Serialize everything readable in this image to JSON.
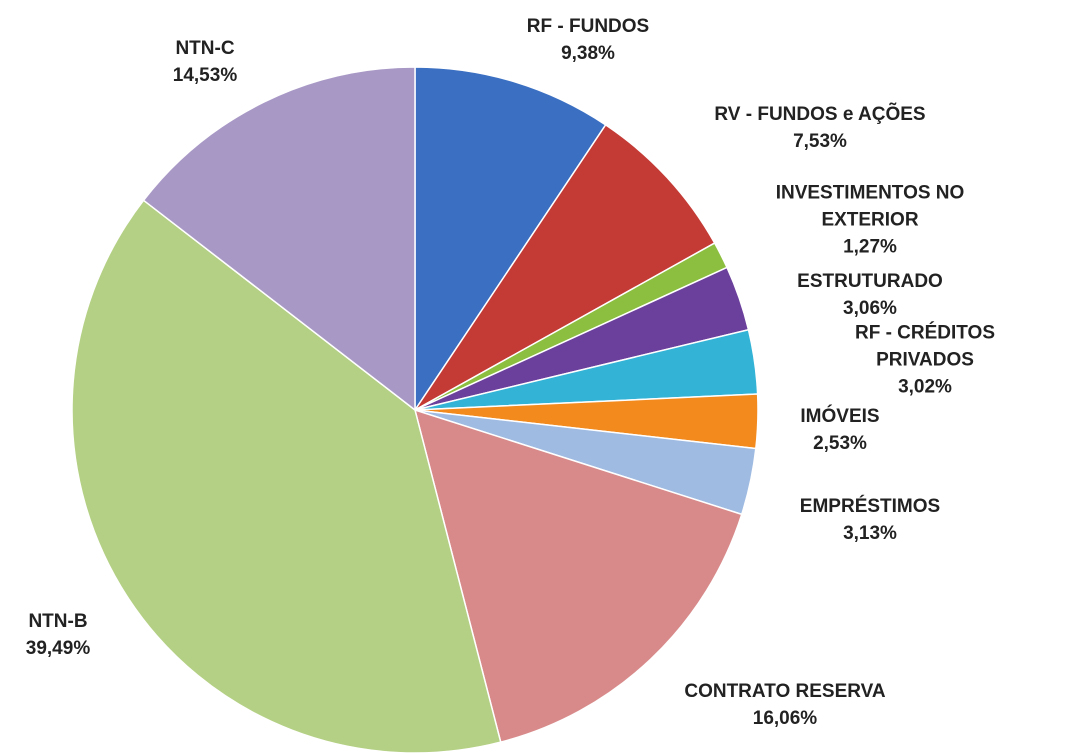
{
  "chart_data": {
    "type": "pie",
    "categories": [
      "RF - FUNDOS",
      "RV - FUNDOS e AÇÕES",
      "INVESTIMENTOS NO EXTERIOR",
      "ESTRUTURADO",
      "RF - CRÉDITOS PRIVADOS",
      "IMÓVEIS",
      "EMPRÉSTIMOS",
      "CONTRATO RESERVA",
      "NTN-B",
      "NTN-C"
    ],
    "values": [
      9.38,
      7.53,
      1.27,
      3.06,
      3.02,
      2.53,
      3.13,
      16.06,
      39.49,
      14.53
    ],
    "value_labels": [
      "9,38%",
      "7,53%",
      "1,27%",
      "3,06%",
      "3,02%",
      "2,53%",
      "3,13%",
      "16,06%",
      "39,49%",
      "14,53%"
    ],
    "colors": [
      "#3a6fc2",
      "#c43a35",
      "#8cbf3f",
      "#6b3f9c",
      "#33b3d6",
      "#f28a1e",
      "#9fbbe2",
      "#d88a8a",
      "#b4d084",
      "#a898c6"
    ]
  }
}
